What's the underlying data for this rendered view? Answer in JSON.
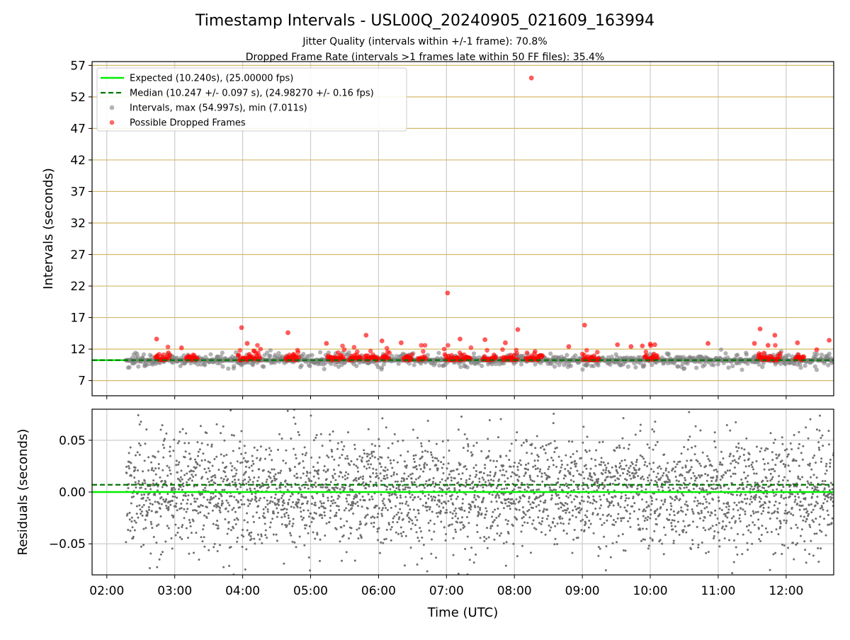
{
  "header": {
    "title": "Timestamp Intervals - USL00Q_20240905_021609_163994",
    "subtitle_1": "Jitter Quality (intervals within +/-1 frame): 70.8%",
    "subtitle_2": "Dropped Frame Rate (intervals >1 frames late within 50 FF files): 35.4%"
  },
  "colors": {
    "expected": "#00ee00",
    "median": "#007700",
    "intervals": "#808080",
    "dropped": "#ff0000",
    "hgrid_top": "#d4b86a",
    "grid": "#cccccc"
  },
  "chart_data": [
    {
      "type": "scatter",
      "panel": "top",
      "ylabel": "Intervals (seconds)",
      "xlim": [
        "01:47",
        "12:42"
      ],
      "ylim": [
        4.6,
        57.6
      ],
      "yticks": [
        "7",
        "12",
        "17",
        "22",
        "27",
        "32",
        "37",
        "42",
        "47",
        "52",
        "57"
      ],
      "grid": true,
      "legend_position": "upper left",
      "legend": [
        "Expected (10.240s), (25.00000 fps)",
        "Median (10.247 +/- 0.097 s), (24.98270 +/- 0.16 fps)",
        "Intervals, max (54.997s), min (7.011s)",
        "Possible Dropped Frames"
      ],
      "expected": 10.24,
      "median": 10.247,
      "intervals_max": 54.997,
      "intervals_min": 7.011,
      "outliers": [
        {
          "x": "08:15",
          "y": 54.997
        },
        {
          "x": "07:01",
          "y": 20.9
        },
        {
          "x": "03:59",
          "y": 15.4
        },
        {
          "x": "09:02",
          "y": 15.8
        },
        {
          "x": "04:40",
          "y": 14.6
        },
        {
          "x": "08:03",
          "y": 15.1
        },
        {
          "x": "11:37",
          "y": 15.2
        },
        {
          "x": "02:44",
          "y": 13.6
        },
        {
          "x": "05:49",
          "y": 14.2
        },
        {
          "x": "07:34",
          "y": 13.5
        },
        {
          "x": "07:12",
          "y": 13.6
        },
        {
          "x": "12:38",
          "y": 13.4
        },
        {
          "x": "11:50",
          "y": 14.2
        },
        {
          "x": "06:03",
          "y": 13.3
        },
        {
          "x": "10:51",
          "y": 12.9
        },
        {
          "x": "10:00",
          "y": 12.8
        },
        {
          "x": "12:10",
          "y": 13.0
        },
        {
          "x": "06:20",
          "y": 13.0
        },
        {
          "x": "05:14",
          "y": 12.9
        },
        {
          "x": "09:53",
          "y": 12.5
        },
        {
          "x": "09:31",
          "y": 12.7
        },
        {
          "x": "08:48",
          "y": 12.4
        },
        {
          "x": "07:52",
          "y": 13.0
        },
        {
          "x": "11:32",
          "y": 12.9
        },
        {
          "x": "03:06",
          "y": 12.2
        },
        {
          "x": "04:04",
          "y": 12.9
        },
        {
          "x": "09:43",
          "y": 12.4
        },
        {
          "x": "11:44",
          "y": 12.6
        },
        {
          "x": "12:27",
          "y": 11.9
        },
        {
          "x": "10:04",
          "y": 12.7
        }
      ],
      "dense_band": {
        "center": 10.24,
        "gray_spread": [
          7.6,
          12.0
        ],
        "red_spread": [
          10.0,
          12.6
        ]
      },
      "red_clusters": [
        [
          "02:43",
          "02:56"
        ],
        [
          "03:10",
          "03:20"
        ],
        [
          "03:56",
          "04:16"
        ],
        [
          "04:38",
          "04:50"
        ],
        [
          "05:15",
          "05:30"
        ],
        [
          "05:34",
          "05:45"
        ],
        [
          "05:48",
          "06:00"
        ],
        [
          "06:03",
          "06:10"
        ],
        [
          "06:22",
          "06:30"
        ],
        [
          "06:35",
          "06:42"
        ],
        [
          "06:58",
          "07:22"
        ],
        [
          "07:32",
          "07:44"
        ],
        [
          "07:49",
          "08:03"
        ],
        [
          "08:10",
          "08:25"
        ],
        [
          "09:00",
          "09:15"
        ],
        [
          "09:55",
          "10:07"
        ],
        [
          "11:35",
          "11:55"
        ],
        [
          "12:08",
          "12:16"
        ]
      ]
    },
    {
      "type": "scatter",
      "panel": "bottom",
      "ylabel": "Residuals (seconds)",
      "xlabel": "Time (UTC)",
      "xlim": [
        "01:47",
        "12:42"
      ],
      "ylim": [
        -0.08,
        0.08
      ],
      "yticks": [
        "−0.05",
        "0.00",
        "0.05"
      ],
      "xticks": [
        "02:00",
        "03:00",
        "04:00",
        "05:00",
        "06:00",
        "07:00",
        "08:00",
        "09:00",
        "10:00",
        "11:00",
        "12:00"
      ],
      "expected_residual": 0.0,
      "median_residual": 0.007,
      "residual_std": 0.027,
      "grid": true
    }
  ]
}
